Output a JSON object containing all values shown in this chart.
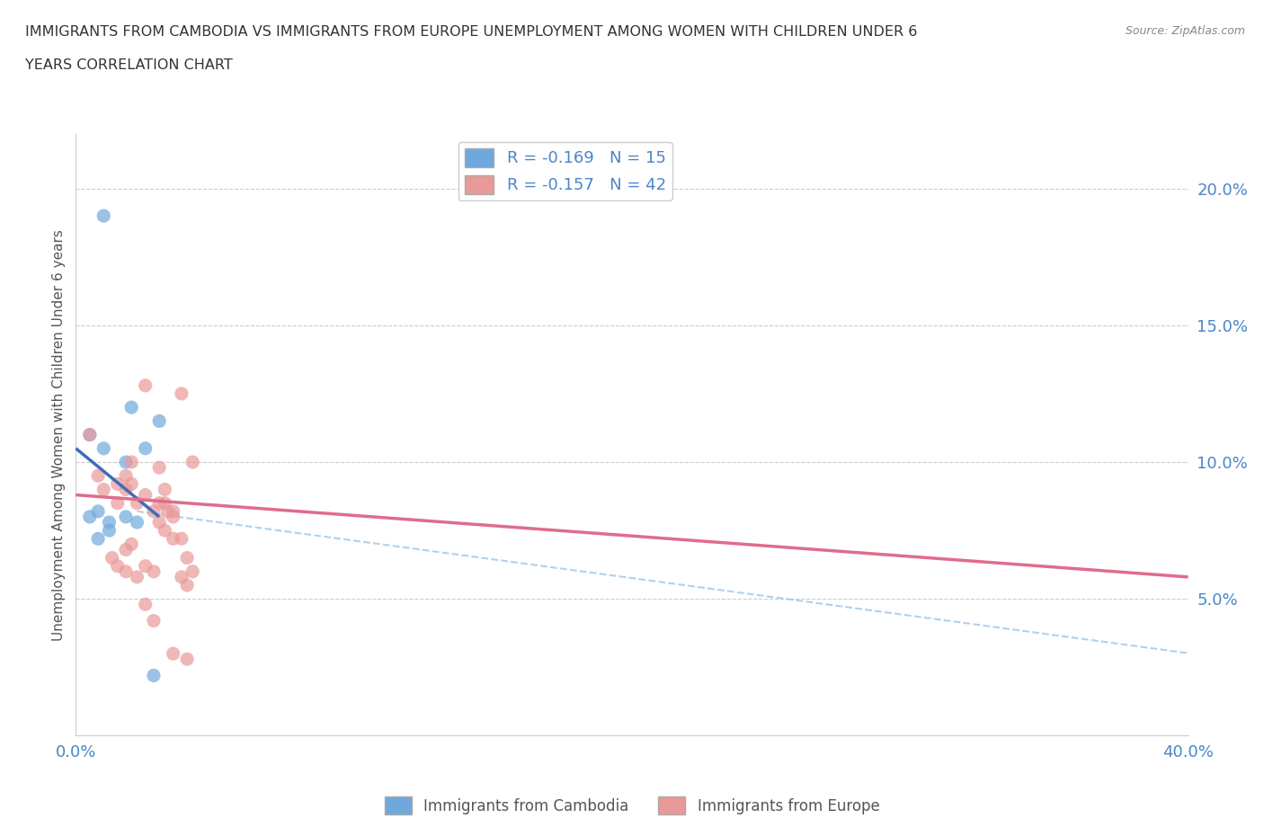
{
  "title_line1": "IMMIGRANTS FROM CAMBODIA VS IMMIGRANTS FROM EUROPE UNEMPLOYMENT AMONG WOMEN WITH CHILDREN UNDER 6",
  "title_line2": "YEARS CORRELATION CHART",
  "source": "Source: ZipAtlas.com",
  "ylabel": "Unemployment Among Women with Children Under 6 years",
  "xlim": [
    0.0,
    0.4
  ],
  "ylim": [
    0.0,
    0.22
  ],
  "xticks": [
    0.0,
    0.05,
    0.1,
    0.15,
    0.2,
    0.25,
    0.3,
    0.35,
    0.4
  ],
  "yticks": [
    0.05,
    0.1,
    0.15,
    0.2
  ],
  "legend_r1": "R = -0.169   N = 15",
  "legend_r2": "R = -0.157   N = 42",
  "cambodia_color": "#6fa8dc",
  "europe_color": "#ea9999",
  "cambodia_line_color": "#3d6eb5",
  "europe_line_color": "#e06c8a",
  "dashed_line_color": "#9fc5e8",
  "cambodia_scatter": [
    [
      0.01,
      0.19
    ],
    [
      0.02,
      0.12
    ],
    [
      0.03,
      0.115
    ],
    [
      0.005,
      0.11
    ],
    [
      0.01,
      0.105
    ],
    [
      0.018,
      0.1
    ],
    [
      0.025,
      0.105
    ],
    [
      0.005,
      0.08
    ],
    [
      0.008,
      0.082
    ],
    [
      0.012,
      0.078
    ],
    [
      0.018,
      0.08
    ],
    [
      0.022,
      0.078
    ],
    [
      0.008,
      0.072
    ],
    [
      0.012,
      0.075
    ],
    [
      0.028,
      0.022
    ]
  ],
  "europe_scatter": [
    [
      0.005,
      0.11
    ],
    [
      0.008,
      0.095
    ],
    [
      0.01,
      0.09
    ],
    [
      0.015,
      0.085
    ],
    [
      0.018,
      0.09
    ],
    [
      0.02,
      0.092
    ],
    [
      0.022,
      0.085
    ],
    [
      0.025,
      0.088
    ],
    [
      0.025,
      0.128
    ],
    [
      0.028,
      0.082
    ],
    [
      0.03,
      0.085
    ],
    [
      0.032,
      0.085
    ],
    [
      0.033,
      0.082
    ],
    [
      0.035,
      0.08
    ],
    [
      0.015,
      0.092
    ],
    [
      0.018,
      0.095
    ],
    [
      0.02,
      0.1
    ],
    [
      0.03,
      0.098
    ],
    [
      0.032,
      0.09
    ],
    [
      0.035,
      0.082
    ],
    [
      0.038,
      0.072
    ],
    [
      0.04,
      0.065
    ],
    [
      0.042,
      0.06
    ],
    [
      0.018,
      0.06
    ],
    [
      0.022,
      0.058
    ],
    [
      0.025,
      0.062
    ],
    [
      0.028,
      0.06
    ],
    [
      0.03,
      0.078
    ],
    [
      0.032,
      0.075
    ],
    [
      0.035,
      0.072
    ],
    [
      0.038,
      0.058
    ],
    [
      0.04,
      0.055
    ],
    [
      0.042,
      0.1
    ],
    [
      0.013,
      0.065
    ],
    [
      0.015,
      0.062
    ],
    [
      0.018,
      0.068
    ],
    [
      0.02,
      0.07
    ],
    [
      0.025,
      0.048
    ],
    [
      0.028,
      0.042
    ],
    [
      0.035,
      0.03
    ],
    [
      0.04,
      0.028
    ],
    [
      0.038,
      0.125
    ]
  ],
  "cambodia_line": [
    [
      0.0,
      0.105
    ],
    [
      0.03,
      0.08
    ]
  ],
  "europe_line": [
    [
      0.0,
      0.088
    ],
    [
      0.4,
      0.058
    ]
  ],
  "dashed_line": [
    [
      0.022,
      0.082
    ],
    [
      0.62,
      0.0
    ]
  ],
  "background_color": "#ffffff",
  "grid_color": "#cccccc",
  "tick_color": "#4a86c8"
}
